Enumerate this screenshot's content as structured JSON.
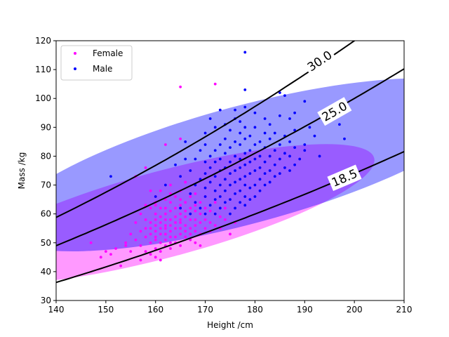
{
  "chart_data": {
    "type": "scatter",
    "xlabel": "Height /cm",
    "ylabel": "Mass /kg",
    "xlim": [
      140,
      210
    ],
    "ylim": [
      30,
      120
    ],
    "xticks": [
      140,
      150,
      160,
      170,
      180,
      190,
      200,
      210
    ],
    "yticks": [
      30,
      40,
      50,
      60,
      70,
      80,
      90,
      100,
      110,
      120
    ],
    "legend": {
      "placement": "top-left"
    },
    "series": [
      {
        "name": "Female",
        "color": "#ff00ff",
        "ellipse": {
          "center": [
            162,
            60
          ],
          "semi_axes": [
            55,
            11
          ],
          "angle_deg": 15,
          "color": "#ff00ff",
          "opacity": 0.4
        },
        "points": [
          [
            147,
            50
          ],
          [
            149,
            45
          ],
          [
            150,
            47
          ],
          [
            151,
            46
          ],
          [
            152,
            48
          ],
          [
            153,
            42
          ],
          [
            154,
            49
          ],
          [
            154,
            50
          ],
          [
            155,
            53
          ],
          [
            155,
            47
          ],
          [
            156,
            51
          ],
          [
            156,
            57
          ],
          [
            157,
            49
          ],
          [
            157,
            54
          ],
          [
            157,
            60
          ],
          [
            157,
            44
          ],
          [
            158,
            47
          ],
          [
            158,
            52
          ],
          [
            158,
            55
          ],
          [
            158,
            58
          ],
          [
            158,
            63
          ],
          [
            159,
            46
          ],
          [
            159,
            50
          ],
          [
            159,
            53
          ],
          [
            159,
            55
          ],
          [
            159,
            57
          ],
          [
            159,
            62
          ],
          [
            160,
            45
          ],
          [
            160,
            48
          ],
          [
            160,
            51
          ],
          [
            160,
            52
          ],
          [
            160,
            54
          ],
          [
            160,
            56
          ],
          [
            160,
            58
          ],
          [
            160,
            60
          ],
          [
            160,
            63
          ],
          [
            160,
            66
          ],
          [
            161,
            44
          ],
          [
            161,
            47
          ],
          [
            161,
            50
          ],
          [
            161,
            53
          ],
          [
            161,
            55
          ],
          [
            161,
            57
          ],
          [
            161,
            59
          ],
          [
            161,
            62
          ],
          [
            161,
            68
          ],
          [
            162,
            49
          ],
          [
            162,
            51
          ],
          [
            162,
            53
          ],
          [
            162,
            55
          ],
          [
            162,
            56
          ],
          [
            162,
            58
          ],
          [
            162,
            60
          ],
          [
            162,
            62
          ],
          [
            162,
            65
          ],
          [
            163,
            48
          ],
          [
            163,
            50
          ],
          [
            163,
            52
          ],
          [
            163,
            54
          ],
          [
            163,
            56
          ],
          [
            163,
            58
          ],
          [
            163,
            61
          ],
          [
            163,
            64
          ],
          [
            163,
            70
          ],
          [
            164,
            50
          ],
          [
            164,
            52
          ],
          [
            164,
            55
          ],
          [
            164,
            57
          ],
          [
            164,
            59
          ],
          [
            164,
            62
          ],
          [
            164,
            66
          ],
          [
            165,
            49
          ],
          [
            165,
            53
          ],
          [
            165,
            55
          ],
          [
            165,
            57
          ],
          [
            165,
            58
          ],
          [
            165,
            60
          ],
          [
            165,
            63
          ],
          [
            165,
            65
          ],
          [
            165,
            68
          ],
          [
            166,
            52
          ],
          [
            166,
            54
          ],
          [
            166,
            56
          ],
          [
            166,
            59
          ],
          [
            166,
            61
          ],
          [
            166,
            64
          ],
          [
            166,
            71
          ],
          [
            167,
            51
          ],
          [
            167,
            53
          ],
          [
            167,
            55
          ],
          [
            167,
            58
          ],
          [
            167,
            60
          ],
          [
            167,
            62
          ],
          [
            167,
            66
          ],
          [
            168,
            50
          ],
          [
            168,
            54
          ],
          [
            168,
            56
          ],
          [
            168,
            58
          ],
          [
            168,
            61
          ],
          [
            168,
            63
          ],
          [
            168,
            67
          ],
          [
            169,
            49
          ],
          [
            169,
            53
          ],
          [
            169,
            57
          ],
          [
            169,
            60
          ],
          [
            169,
            64
          ],
          [
            170,
            55
          ],
          [
            170,
            58
          ],
          [
            170,
            62
          ],
          [
            170,
            66
          ],
          [
            171,
            54
          ],
          [
            171,
            57
          ],
          [
            171,
            61
          ],
          [
            172,
            56
          ],
          [
            172,
            60
          ],
          [
            172,
            64
          ],
          [
            173,
            55
          ],
          [
            173,
            59
          ],
          [
            174,
            58
          ],
          [
            174,
            62
          ],
          [
            175,
            53
          ],
          [
            176,
            57
          ],
          [
            158,
            76
          ],
          [
            156,
            73
          ],
          [
            162,
            84
          ],
          [
            165,
            86
          ],
          [
            160,
            64
          ],
          [
            165,
            104
          ],
          [
            172,
            105
          ],
          [
            159,
            68
          ],
          [
            163,
            67
          ]
        ]
      },
      {
        "name": "Male",
        "color": "#0000ff",
        "ellipse": {
          "center": [
            178,
            77
          ],
          "semi_axes": [
            64,
            15
          ],
          "angle_deg": 15,
          "color": "#0000ff",
          "opacity": 0.4
        },
        "points": [
          [
            151,
            73
          ],
          [
            160,
            66
          ],
          [
            162,
            70
          ],
          [
            164,
            77
          ],
          [
            165,
            62
          ],
          [
            165,
            73
          ],
          [
            166,
            79
          ],
          [
            166,
            85
          ],
          [
            167,
            60
          ],
          [
            167,
            67
          ],
          [
            167,
            75
          ],
          [
            168,
            64
          ],
          [
            168,
            70
          ],
          [
            168,
            79
          ],
          [
            169,
            62
          ],
          [
            169,
            72
          ],
          [
            169,
            82
          ],
          [
            170,
            60
          ],
          [
            170,
            66
          ],
          [
            170,
            69
          ],
          [
            170,
            74
          ],
          [
            170,
            78
          ],
          [
            170,
            84
          ],
          [
            170,
            88
          ],
          [
            171,
            63
          ],
          [
            171,
            71
          ],
          [
            171,
            76
          ],
          [
            171,
            80
          ],
          [
            171,
            93
          ],
          [
            172,
            60
          ],
          [
            172,
            65
          ],
          [
            172,
            68
          ],
          [
            172,
            73
          ],
          [
            172,
            78
          ],
          [
            172,
            82
          ],
          [
            172,
            90
          ],
          [
            173,
            62
          ],
          [
            173,
            66
          ],
          [
            173,
            70
          ],
          [
            173,
            75
          ],
          [
            173,
            79
          ],
          [
            173,
            84
          ],
          [
            173,
            96
          ],
          [
            174,
            64
          ],
          [
            174,
            68
          ],
          [
            174,
            72
          ],
          [
            174,
            76
          ],
          [
            174,
            81
          ],
          [
            174,
            86
          ],
          [
            174,
            91
          ],
          [
            175,
            60
          ],
          [
            175,
            65
          ],
          [
            175,
            70
          ],
          [
            175,
            74
          ],
          [
            175,
            78
          ],
          [
            175,
            83
          ],
          [
            175,
            89
          ],
          [
            176,
            62
          ],
          [
            176,
            67
          ],
          [
            176,
            71
          ],
          [
            176,
            75
          ],
          [
            176,
            80
          ],
          [
            176,
            85
          ],
          [
            176,
            93
          ],
          [
            177,
            64
          ],
          [
            177,
            68
          ],
          [
            177,
            72
          ],
          [
            177,
            76
          ],
          [
            177,
            79
          ],
          [
            177,
            84
          ],
          [
            177,
            88
          ],
          [
            177,
            92
          ],
          [
            178,
            63
          ],
          [
            178,
            66
          ],
          [
            178,
            70
          ],
          [
            178,
            73
          ],
          [
            178,
            77
          ],
          [
            178,
            81
          ],
          [
            178,
            86
          ],
          [
            178,
            90
          ],
          [
            178,
            97
          ],
          [
            178,
            103
          ],
          [
            178,
            116
          ],
          [
            179,
            65
          ],
          [
            179,
            69
          ],
          [
            179,
            74
          ],
          [
            179,
            78
          ],
          [
            179,
            82
          ],
          [
            179,
            87
          ],
          [
            180,
            66
          ],
          [
            180,
            70
          ],
          [
            180,
            75
          ],
          [
            180,
            79
          ],
          [
            180,
            84
          ],
          [
            180,
            90
          ],
          [
            180,
            95
          ],
          [
            181,
            68
          ],
          [
            181,
            72
          ],
          [
            181,
            76
          ],
          [
            181,
            80
          ],
          [
            181,
            85
          ],
          [
            182,
            70
          ],
          [
            182,
            74
          ],
          [
            182,
            78
          ],
          [
            182,
            83
          ],
          [
            182,
            88
          ],
          [
            183,
            71
          ],
          [
            183,
            75
          ],
          [
            183,
            80
          ],
          [
            183,
            86
          ],
          [
            183,
            91
          ],
          [
            184,
            73
          ],
          [
            184,
            77
          ],
          [
            184,
            82
          ],
          [
            184,
            88
          ],
          [
            185,
            74
          ],
          [
            185,
            79
          ],
          [
            185,
            84
          ],
          [
            185,
            94
          ],
          [
            185,
            102
          ],
          [
            186,
            76
          ],
          [
            186,
            81
          ],
          [
            186,
            87
          ],
          [
            186,
            101
          ],
          [
            187,
            75
          ],
          [
            187,
            80
          ],
          [
            187,
            85
          ],
          [
            187,
            93
          ],
          [
            188,
            77
          ],
          [
            188,
            83
          ],
          [
            188,
            89
          ],
          [
            188,
            95
          ],
          [
            189,
            79
          ],
          [
            190,
            82
          ],
          [
            190,
            99
          ],
          [
            192,
            87
          ],
          [
            193,
            80
          ],
          [
            197,
            91
          ],
          [
            198,
            86
          ],
          [
            190,
            84
          ],
          [
            191,
            90
          ],
          [
            182,
            93
          ],
          [
            176,
            96
          ]
        ]
      }
    ],
    "contours": [
      {
        "label": "18.5",
        "bmi": 18.5,
        "label_at": [
          198,
          72.5
        ]
      },
      {
        "label": "25.0",
        "bmi": 25.0,
        "label_at": [
          196,
          95.5
        ]
      },
      {
        "label": "30.0",
        "bmi": 30.0,
        "label_at": [
          193,
          113
        ]
      }
    ],
    "line_color": "#000000"
  }
}
